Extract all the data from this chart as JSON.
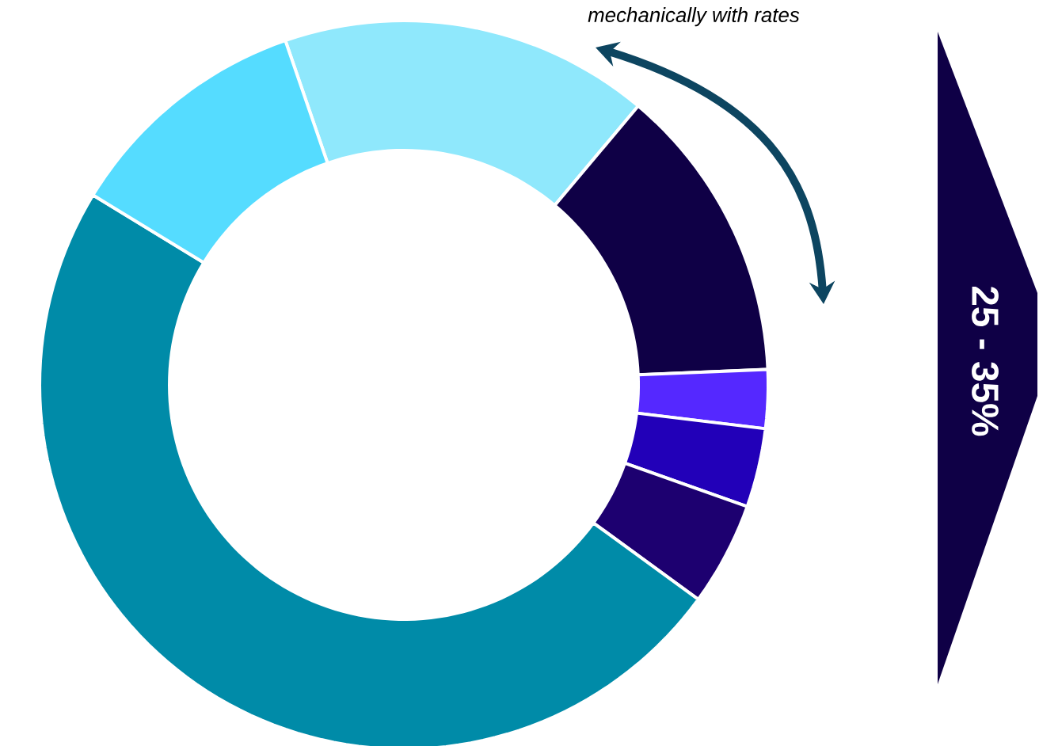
{
  "chart_data": {
    "type": "donut",
    "categories": [
      null,
      null,
      null,
      null,
      null,
      null,
      null
    ],
    "values": [
      16.4,
      13.2,
      2.6,
      3.5,
      4.6,
      48.7,
      11.0
    ],
    "colors": [
      "#8fe8fc",
      "#0f0046",
      "#5528ff",
      "#2200b8",
      "#1d0070",
      "#008ba8",
      "#55dcff"
    ],
    "annotations": [
      "mechanically with rates",
      "25 - 35%"
    ]
  }
}
